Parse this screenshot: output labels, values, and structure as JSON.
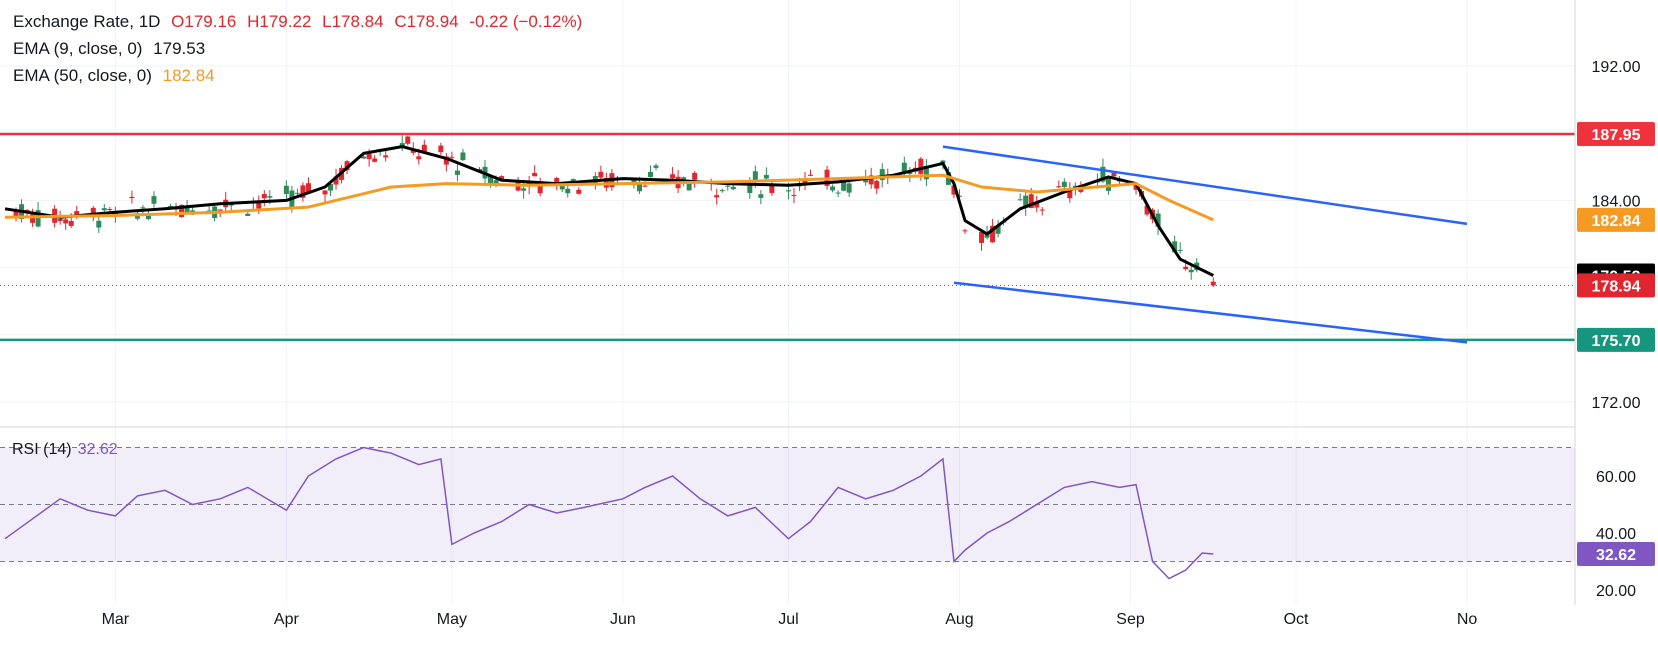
{
  "header": {
    "symbol": "Exchange Rate, 1D",
    "open": "O179.16",
    "high": "H179.22",
    "low": "L178.84",
    "close": "C178.94",
    "change": "-0.22 (−0.12%)",
    "ema9_label": "EMA (9, close, 0)",
    "ema9_value": "179.53",
    "ema50_label": "EMA (50, close, 0)",
    "ema50_value": "182.84"
  },
  "rsi_panel": {
    "label": "RSI (14)",
    "value": "32.62"
  },
  "chart_data": [
    {
      "type": "candlestick",
      "title": "",
      "y_ticks": [
        "192.00",
        "184.00",
        "172.00"
      ],
      "ylim": [
        170.5,
        195.5
      ],
      "x_ticks": [
        "Mar",
        "Apr",
        "May",
        "Jun",
        "Jul",
        "Aug",
        "Sep",
        "Oct",
        "No"
      ],
      "grid": true,
      "series": [
        {
          "name": "EMA (9, close, 0)",
          "color": "#000000",
          "x": [
            "2024-02-10",
            "2024-02-20",
            "2024-03-01",
            "2024-03-10",
            "2024-03-20",
            "2024-04-01",
            "2024-04-08",
            "2024-04-15",
            "2024-04-22",
            "2024-04-30",
            "2024-05-10",
            "2024-05-20",
            "2024-06-01",
            "2024-06-10",
            "2024-06-20",
            "2024-07-01",
            "2024-07-10",
            "2024-07-20",
            "2024-07-29",
            "2024-07-31",
            "2024-08-02",
            "2024-08-06",
            "2024-08-12",
            "2024-08-20",
            "2024-08-28",
            "2024-09-02",
            "2024-09-06",
            "2024-09-10",
            "2024-09-16"
          ],
          "values": [
            183.5,
            183.0,
            183.3,
            183.5,
            183.8,
            184.0,
            184.8,
            186.8,
            187.2,
            186.5,
            185.2,
            185.0,
            185.3,
            185.2,
            185.0,
            184.9,
            185.1,
            185.5,
            186.2,
            185.0,
            182.8,
            182.0,
            183.5,
            184.5,
            185.4,
            185.0,
            182.5,
            180.5,
            179.53
          ]
        },
        {
          "name": "EMA (50, close, 0)",
          "color": "#f59a23",
          "x": [
            "2024-02-10",
            "2024-03-01",
            "2024-03-20",
            "2024-04-05",
            "2024-04-20",
            "2024-04-30",
            "2024-05-15",
            "2024-06-01",
            "2024-06-20",
            "2024-07-10",
            "2024-07-29",
            "2024-08-05",
            "2024-08-15",
            "2024-09-02",
            "2024-09-08",
            "2024-09-16"
          ],
          "values": [
            183.0,
            183.1,
            183.3,
            183.6,
            184.8,
            185.0,
            184.9,
            185.0,
            185.1,
            185.3,
            185.5,
            184.8,
            184.5,
            185.0,
            184.0,
            182.84
          ]
        },
        {
          "name": "resistance",
          "color": "#f0323c",
          "values": [
            187.95
          ]
        },
        {
          "name": "support",
          "color": "#15967e",
          "values": [
            175.7
          ]
        }
      ],
      "candles": {
        "x_range": [
          "2024-02-10",
          "2024-09-16"
        ],
        "last": {
          "open": 179.16,
          "high": 179.22,
          "low": 178.84,
          "close": 178.94
        }
      },
      "channel": {
        "color": "#2962ff",
        "upper": {
          "x": [
            "2024-07-29",
            "2024-11-01"
          ],
          "values": [
            187.2,
            182.6
          ]
        },
        "lower": {
          "x": [
            "2024-07-31",
            "2024-11-01"
          ],
          "values": [
            179.1,
            175.55
          ]
        }
      },
      "price_tags": [
        {
          "value": 187.95,
          "label": "187.95",
          "color": "#f0323c"
        },
        {
          "value": 182.84,
          "label": "182.84",
          "color": "#f59a23"
        },
        {
          "value": 179.53,
          "label": "179.53",
          "color": "#000000"
        },
        {
          "value": 178.94,
          "label": "178.94",
          "color": "#e0262e"
        },
        {
          "value": 175.7,
          "label": "175.70",
          "color": "#15967e"
        }
      ]
    },
    {
      "type": "line",
      "title": "",
      "y_ticks": [
        "60.00",
        "40.00",
        "20.00"
      ],
      "ylim": [
        18,
        81
      ],
      "levels": [
        70,
        50,
        30
      ],
      "series": [
        {
          "name": "RSI (14)",
          "color": "#7e57c2",
          "x": [
            "2024-02-10",
            "2024-02-15",
            "2024-02-20",
            "2024-02-25",
            "2024-03-01",
            "2024-03-05",
            "2024-03-10",
            "2024-03-15",
            "2024-03-20",
            "2024-03-25",
            "2024-04-01",
            "2024-04-05",
            "2024-04-10",
            "2024-04-15",
            "2024-04-20",
            "2024-04-25",
            "2024-04-29",
            "2024-05-01",
            "2024-05-05",
            "2024-05-10",
            "2024-05-15",
            "2024-05-20",
            "2024-05-25",
            "2024-06-01",
            "2024-06-05",
            "2024-06-10",
            "2024-06-15",
            "2024-06-20",
            "2024-06-25",
            "2024-07-01",
            "2024-07-05",
            "2024-07-10",
            "2024-07-15",
            "2024-07-20",
            "2024-07-25",
            "2024-07-29",
            "2024-07-31",
            "2024-08-02",
            "2024-08-06",
            "2024-08-10",
            "2024-08-15",
            "2024-08-20",
            "2024-08-25",
            "2024-08-30",
            "2024-09-02",
            "2024-09-05",
            "2024-09-08",
            "2024-09-11",
            "2024-09-14",
            "2024-09-16"
          ],
          "values": [
            38,
            45,
            52,
            48,
            46,
            53,
            55,
            50,
            52,
            56,
            48,
            60,
            66,
            70,
            68,
            64,
            66,
            36,
            40,
            44,
            50,
            47,
            49,
            52,
            56,
            60,
            52,
            46,
            49,
            38,
            44,
            56,
            52,
            55,
            60,
            66,
            30,
            34,
            40,
            44,
            50,
            56,
            58,
            56,
            57,
            30,
            24,
            27,
            33,
            32.62
          ]
        }
      ],
      "price_tags": [
        {
          "value": 32.62,
          "label": "32.62",
          "color": "#7e57c2"
        }
      ]
    }
  ]
}
